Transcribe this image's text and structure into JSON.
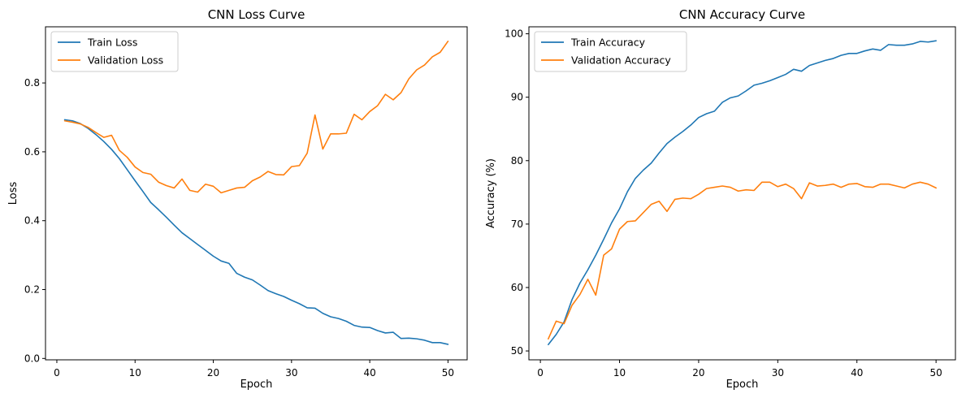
{
  "chart_data": [
    {
      "type": "line",
      "title": "CNN Loss Curve",
      "xlabel": "Epoch",
      "ylabel": "Loss",
      "xlim": [
        -1.45,
        52.45
      ],
      "ylim": [
        -0.004,
        0.963
      ],
      "xticks": [
        0,
        10,
        20,
        30,
        40,
        50
      ],
      "yticks": [
        0.0,
        0.2,
        0.4,
        0.6,
        0.8
      ],
      "ytick_labels": [
        "0.0",
        "0.2",
        "0.4",
        "0.6",
        "0.8"
      ],
      "grid": false,
      "legend_position": "upper-left",
      "x": [
        1,
        2,
        3,
        4,
        5,
        6,
        7,
        8,
        9,
        10,
        11,
        12,
        13,
        14,
        15,
        16,
        17,
        18,
        19,
        20,
        21,
        22,
        23,
        24,
        25,
        26,
        27,
        28,
        29,
        30,
        31,
        32,
        33,
        34,
        35,
        36,
        37,
        38,
        39,
        40,
        41,
        42,
        43,
        44,
        45,
        46,
        47,
        48,
        49,
        50
      ],
      "series": [
        {
          "name": "Train Loss",
          "color": "#1f77b4",
          "values": [
            0.693,
            0.69,
            0.682,
            0.668,
            0.65,
            0.63,
            0.607,
            0.58,
            0.548,
            0.516,
            0.485,
            0.453,
            0.432,
            0.41,
            0.387,
            0.365,
            0.348,
            0.331,
            0.314,
            0.297,
            0.283,
            0.276,
            0.247,
            0.236,
            0.228,
            0.213,
            0.197,
            0.188,
            0.18,
            0.169,
            0.159,
            0.147,
            0.146,
            0.131,
            0.121,
            0.116,
            0.108,
            0.096,
            0.091,
            0.09,
            0.081,
            0.074,
            0.076,
            0.058,
            0.059,
            0.057,
            0.053,
            0.046,
            0.046,
            0.041
          ]
        },
        {
          "name": "Validation Loss",
          "color": "#ff7f0e",
          "values": [
            0.69,
            0.686,
            0.681,
            0.671,
            0.656,
            0.642,
            0.648,
            0.604,
            0.584,
            0.556,
            0.54,
            0.535,
            0.512,
            0.502,
            0.495,
            0.521,
            0.488,
            0.483,
            0.506,
            0.5,
            0.481,
            0.488,
            0.495,
            0.497,
            0.516,
            0.527,
            0.543,
            0.534,
            0.533,
            0.557,
            0.56,
            0.596,
            0.707,
            0.608,
            0.652,
            0.652,
            0.654,
            0.709,
            0.693,
            0.717,
            0.734,
            0.767,
            0.751,
            0.772,
            0.812,
            0.838,
            0.852,
            0.876,
            0.889,
            0.921
          ]
        }
      ]
    },
    {
      "type": "line",
      "title": "CNN Accuracy Curve",
      "xlabel": "Epoch",
      "ylabel": "Accuracy (%)",
      "xlim": [
        -1.45,
        52.45
      ],
      "ylim": [
        48.6,
        101.1
      ],
      "xticks": [
        0,
        10,
        20,
        30,
        40,
        50
      ],
      "yticks": [
        50,
        60,
        70,
        80,
        90,
        100
      ],
      "ytick_labels": [
        "50",
        "60",
        "70",
        "80",
        "90",
        "100"
      ],
      "grid": false,
      "legend_position": "upper-left",
      "x": [
        1,
        2,
        3,
        4,
        5,
        6,
        7,
        8,
        9,
        10,
        11,
        12,
        13,
        14,
        15,
        16,
        17,
        18,
        19,
        20,
        21,
        22,
        23,
        24,
        25,
        26,
        27,
        28,
        29,
        30,
        31,
        32,
        33,
        34,
        35,
        36,
        37,
        38,
        39,
        40,
        41,
        42,
        43,
        44,
        45,
        46,
        47,
        48,
        49,
        50
      ],
      "series": [
        {
          "name": "Train Accuracy",
          "color": "#1f77b4",
          "values": [
            51.0,
            52.6,
            54.6,
            58.1,
            60.7,
            62.8,
            65.1,
            67.6,
            70.2,
            72.4,
            75.1,
            77.2,
            78.5,
            79.6,
            81.2,
            82.7,
            83.7,
            84.6,
            85.6,
            86.8,
            87.4,
            87.8,
            89.2,
            89.9,
            90.2,
            91.0,
            91.9,
            92.2,
            92.6,
            93.1,
            93.6,
            94.4,
            94.1,
            95.0,
            95.4,
            95.8,
            96.1,
            96.6,
            96.9,
            96.9,
            97.3,
            97.6,
            97.4,
            98.3,
            98.2,
            98.2,
            98.4,
            98.8,
            98.7,
            98.9
          ]
        },
        {
          "name": "Validation Accuracy",
          "color": "#ff7f0e",
          "values": [
            51.9,
            54.7,
            54.3,
            57.2,
            58.9,
            61.3,
            58.8,
            65.1,
            66.1,
            69.2,
            70.4,
            70.5,
            71.8,
            73.1,
            73.6,
            72.0,
            73.9,
            74.1,
            74.0,
            74.7,
            75.6,
            75.8,
            76.0,
            75.8,
            75.2,
            75.4,
            75.3,
            76.6,
            76.6,
            75.9,
            76.3,
            75.6,
            74.0,
            76.5,
            76.0,
            76.1,
            76.3,
            75.8,
            76.3,
            76.4,
            75.9,
            75.8,
            76.3,
            76.3,
            76.0,
            75.7,
            76.3,
            76.6,
            76.3,
            75.7
          ]
        }
      ]
    }
  ]
}
